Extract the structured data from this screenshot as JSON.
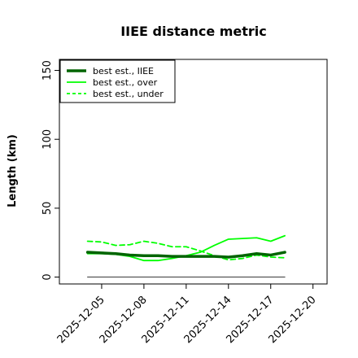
{
  "chart_data": {
    "type": "line",
    "title": "IIEE distance metric",
    "xlabel": "",
    "ylabel": "Length (km)",
    "ylim": [
      -5,
      158
    ],
    "xlim": [
      "2025-12-02",
      "2025-12-21"
    ],
    "y_ticks": [
      0,
      50,
      100,
      150
    ],
    "x_ticks": [
      "2025-12-05",
      "2025-12-08",
      "2025-12-11",
      "2025-12-14",
      "2025-12-17",
      "2025-12-20"
    ],
    "grid": false,
    "legend_position": "top-left",
    "x": [
      "2025-12-04",
      "2025-12-05",
      "2025-12-06",
      "2025-12-07",
      "2025-12-08",
      "2025-12-09",
      "2025-12-10",
      "2025-12-11",
      "2025-12-12",
      "2025-12-13",
      "2025-12-14",
      "2025-12-15",
      "2025-12-16",
      "2025-12-17",
      "2025-12-18"
    ],
    "series": [
      {
        "name": "best est., IIEE",
        "color": "#006400",
        "style": "solid-thick",
        "values": [
          18,
          17.5,
          17,
          16,
          15.5,
          15.5,
          15,
          15,
          15,
          15,
          14.5,
          15.5,
          17,
          16,
          18
        ]
      },
      {
        "name": "best est., over",
        "color": "#00ff00",
        "style": "solid",
        "values": [
          17,
          17,
          16.5,
          15,
          12,
          12,
          13.5,
          15.5,
          18,
          23,
          27.5,
          28,
          28.5,
          26,
          30
        ]
      },
      {
        "name": "best est., under",
        "color": "#00ff00",
        "style": "dashed",
        "values": [
          26,
          25.5,
          23,
          23.5,
          26,
          24.5,
          22,
          22,
          19,
          15.5,
          12.5,
          13.5,
          16,
          14.5,
          14
        ]
      },
      {
        "name": "",
        "color": "#555555",
        "style": "solid-thin",
        "values": [
          0,
          0,
          0,
          0,
          0,
          0,
          0,
          0,
          0,
          0,
          0,
          0,
          0,
          0,
          0
        ]
      }
    ]
  }
}
